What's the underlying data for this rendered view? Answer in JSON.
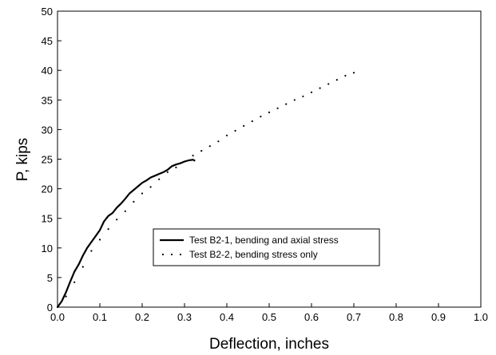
{
  "chart_data": {
    "type": "line",
    "xlabel": "Deflection, inches",
    "ylabel": "P, kips",
    "xlim": [
      0,
      1.0
    ],
    "ylim": [
      0,
      50
    ],
    "x_ticks": [
      "0.0",
      "0.1",
      "0.2",
      "0.3",
      "0.4",
      "0.5",
      "0.6",
      "0.7",
      "0.8",
      "0.9",
      "1.0"
    ],
    "y_ticks": [
      "0",
      "5",
      "10",
      "15",
      "20",
      "25",
      "30",
      "35",
      "40",
      "45",
      "50"
    ],
    "grid": false,
    "legend_position": "center-right",
    "series": [
      {
        "name": "Test B2-1, bending and axial stress",
        "style": "solid",
        "color": "#000000",
        "points": [
          [
            0.0,
            0.0
          ],
          [
            0.01,
            1.0
          ],
          [
            0.02,
            2.5
          ],
          [
            0.03,
            4.3
          ],
          [
            0.04,
            6.0
          ],
          [
            0.05,
            7.2
          ],
          [
            0.06,
            8.7
          ],
          [
            0.07,
            10.0
          ],
          [
            0.08,
            11.0
          ],
          [
            0.09,
            12.0
          ],
          [
            0.1,
            13.0
          ],
          [
            0.11,
            14.5
          ],
          [
            0.12,
            15.4
          ],
          [
            0.13,
            15.9
          ],
          [
            0.14,
            16.8
          ],
          [
            0.15,
            17.5
          ],
          [
            0.16,
            18.3
          ],
          [
            0.17,
            19.2
          ],
          [
            0.18,
            19.8
          ],
          [
            0.19,
            20.4
          ],
          [
            0.2,
            21.0
          ],
          [
            0.21,
            21.4
          ],
          [
            0.22,
            21.9
          ],
          [
            0.23,
            22.2
          ],
          [
            0.24,
            22.5
          ],
          [
            0.25,
            22.8
          ],
          [
            0.26,
            23.2
          ],
          [
            0.27,
            23.8
          ],
          [
            0.28,
            24.1
          ],
          [
            0.29,
            24.3
          ],
          [
            0.3,
            24.6
          ],
          [
            0.31,
            24.8
          ],
          [
            0.32,
            24.9
          ],
          [
            0.325,
            24.7
          ]
        ]
      },
      {
        "name": "Test B2-2, bending stress only",
        "style": "dotted",
        "color": "#000000",
        "points": [
          [
            0.0,
            0.0
          ],
          [
            0.02,
            1.8
          ],
          [
            0.04,
            4.2
          ],
          [
            0.06,
            6.8
          ],
          [
            0.08,
            9.5
          ],
          [
            0.1,
            11.4
          ],
          [
            0.12,
            13.2
          ],
          [
            0.14,
            14.8
          ],
          [
            0.16,
            16.2
          ],
          [
            0.18,
            17.8
          ],
          [
            0.2,
            19.2
          ],
          [
            0.22,
            20.3
          ],
          [
            0.24,
            21.6
          ],
          [
            0.26,
            22.8
          ],
          [
            0.28,
            23.6
          ],
          [
            0.3,
            24.6
          ],
          [
            0.32,
            25.6
          ],
          [
            0.34,
            26.4
          ],
          [
            0.36,
            27.2
          ],
          [
            0.38,
            28.0
          ],
          [
            0.4,
            29.0
          ],
          [
            0.42,
            29.8
          ],
          [
            0.44,
            30.6
          ],
          [
            0.46,
            31.4
          ],
          [
            0.48,
            32.2
          ],
          [
            0.5,
            32.9
          ],
          [
            0.52,
            33.6
          ],
          [
            0.54,
            34.3
          ],
          [
            0.56,
            35.0
          ],
          [
            0.58,
            35.6
          ],
          [
            0.6,
            36.3
          ],
          [
            0.62,
            37.0
          ],
          [
            0.64,
            37.7
          ],
          [
            0.66,
            38.4
          ],
          [
            0.68,
            39.1
          ],
          [
            0.7,
            39.6
          ]
        ]
      }
    ]
  }
}
